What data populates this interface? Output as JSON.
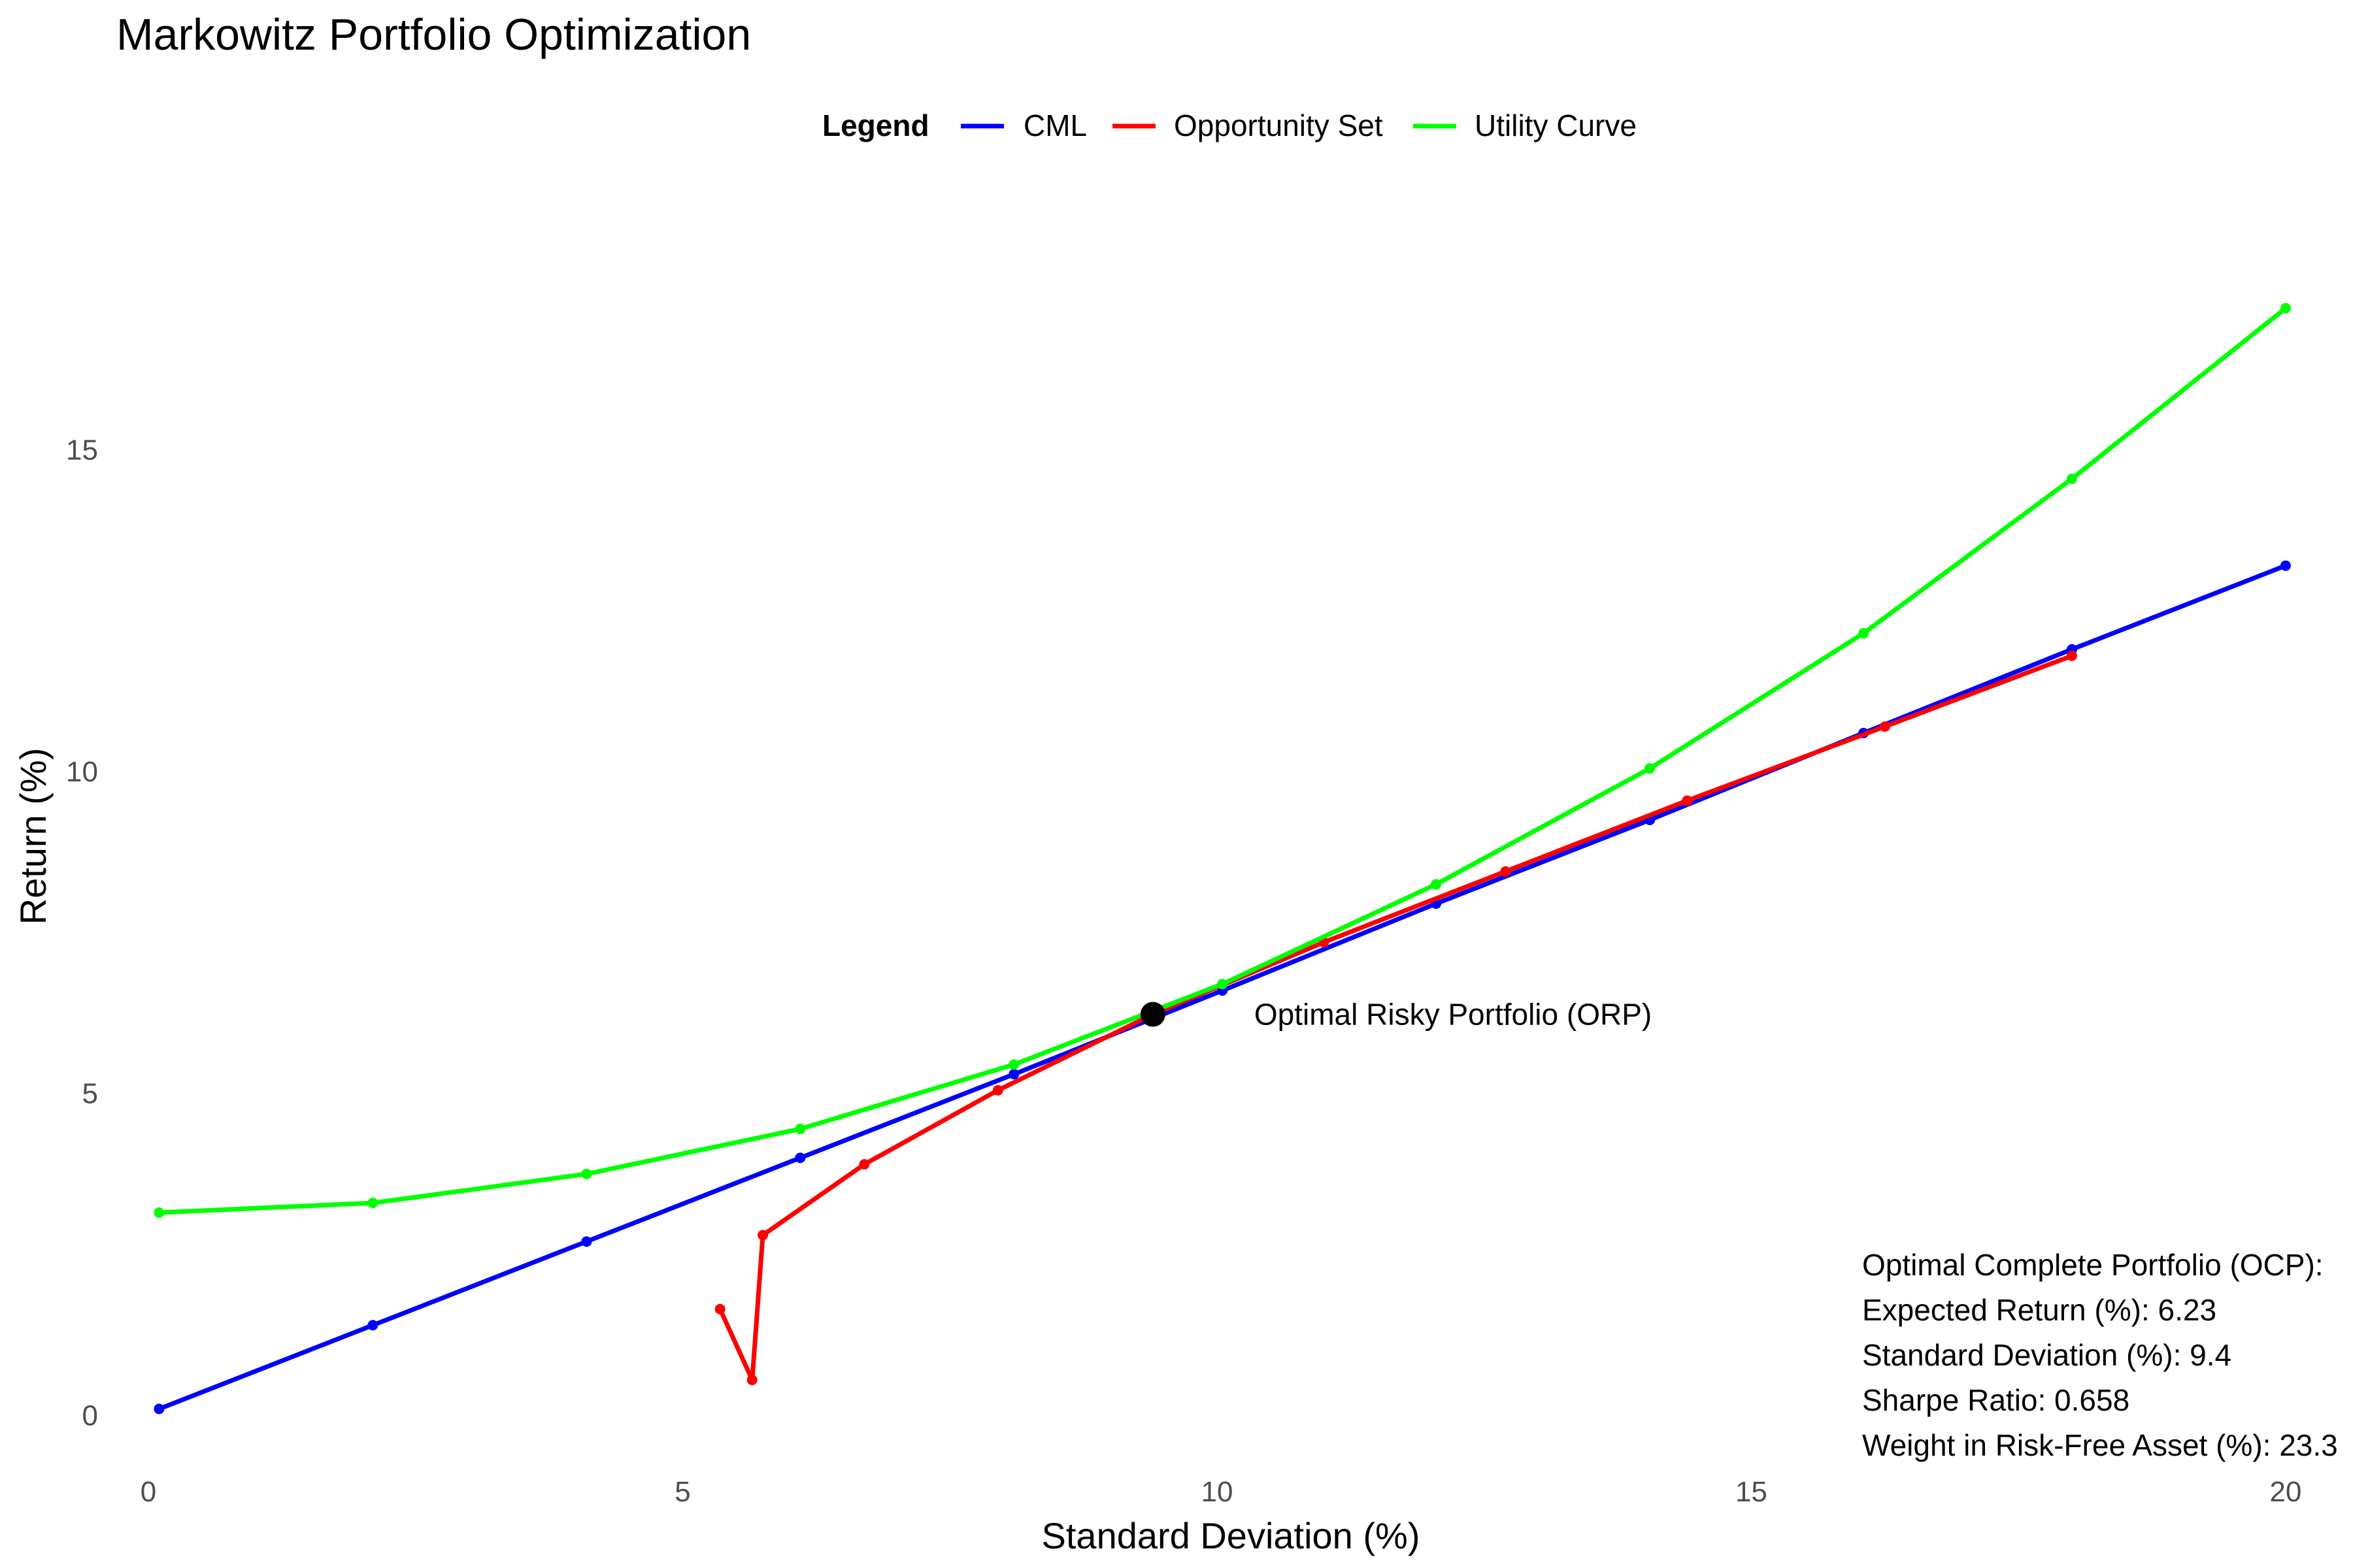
{
  "chart_data": {
    "type": "line",
    "title": "Markowitz Portfolio Optimization",
    "xlabel": "Standard Deviation (%)",
    "ylabel": "Return (%)",
    "xlim": [
      -0.3,
      20.6
    ],
    "ylim": [
      -0.9,
      19.4
    ],
    "x_ticks": [
      0,
      5,
      10,
      15,
      20
    ],
    "y_ticks": [
      0,
      5,
      10,
      15
    ],
    "grid": false,
    "legend": {
      "title": "Legend",
      "position": "top",
      "entries": [
        "CML",
        "Opportunity Set",
        "Utility Curve"
      ]
    },
    "series": [
      {
        "name": "CML",
        "color": "#0000ff",
        "x": [
          0.1,
          2.1,
          4.1,
          6.1,
          8.1,
          10.05,
          12.05,
          14.05,
          16.05,
          18.0,
          20.0
        ],
        "y": [
          0.1,
          1.4,
          2.7,
          4.0,
          5.3,
          6.6,
          7.95,
          9.25,
          10.6,
          11.9,
          13.2
        ]
      },
      {
        "name": "Opportunity Set",
        "color": "#ff0000",
        "x": [
          5.35,
          5.65,
          5.75,
          6.7,
          7.95,
          9.4,
          11.0,
          12.7,
          14.4,
          16.25,
          18.0
        ],
        "y": [
          1.65,
          0.55,
          2.8,
          3.9,
          5.05,
          6.23,
          7.35,
          8.45,
          9.55,
          10.7,
          11.8
        ]
      },
      {
        "name": "Utility Curve",
        "color": "#00ff00",
        "x": [
          0.1,
          2.1,
          4.1,
          6.1,
          8.1,
          10.05,
          12.05,
          14.05,
          16.05,
          18.0,
          20.0
        ],
        "y": [
          3.15,
          3.3,
          3.75,
          4.45,
          5.45,
          6.7,
          8.25,
          10.05,
          12.15,
          14.55,
          17.2
        ]
      }
    ],
    "optimal_point": {
      "x": 9.4,
      "y": 6.23,
      "label": "Optimal Risky Portfolio (ORP)"
    },
    "info_lines": [
      "Optimal Complete Portfolio (OCP):",
      "Expected Return (%): 6.23",
      "Standard Deviation (%): 9.4",
      "Sharpe Ratio: 0.658",
      "Weight in Risk-Free Asset (%): 23.3"
    ]
  }
}
